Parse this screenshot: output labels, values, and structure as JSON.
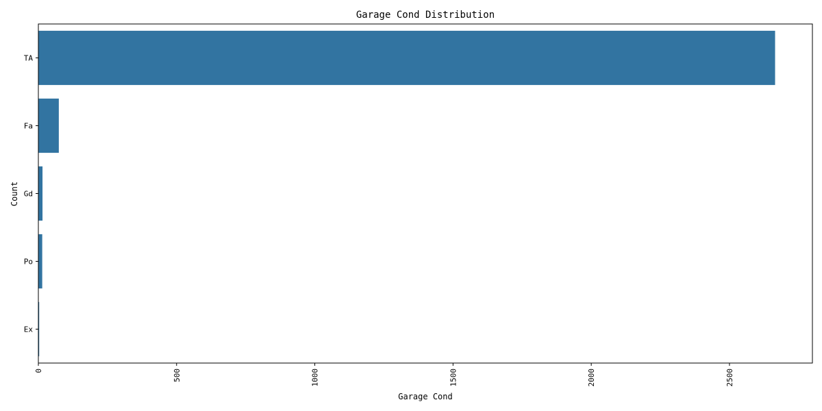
{
  "chart_data": {
    "type": "bar",
    "orientation": "horizontal",
    "title": "Garage Cond Distribution",
    "xlabel": "Garage Cond",
    "ylabel": "Count",
    "categories": [
      "TA",
      "Fa",
      "Gd",
      "Po",
      "Ex"
    ],
    "values": [
      2665,
      74,
      15,
      14,
      3
    ],
    "xlim": [
      0,
      2800
    ],
    "xticks": [
      0,
      500,
      1000,
      1500,
      2000,
      2500
    ],
    "xtick_rotation": 90,
    "grid": false,
    "bar_color": "#3274a1"
  }
}
